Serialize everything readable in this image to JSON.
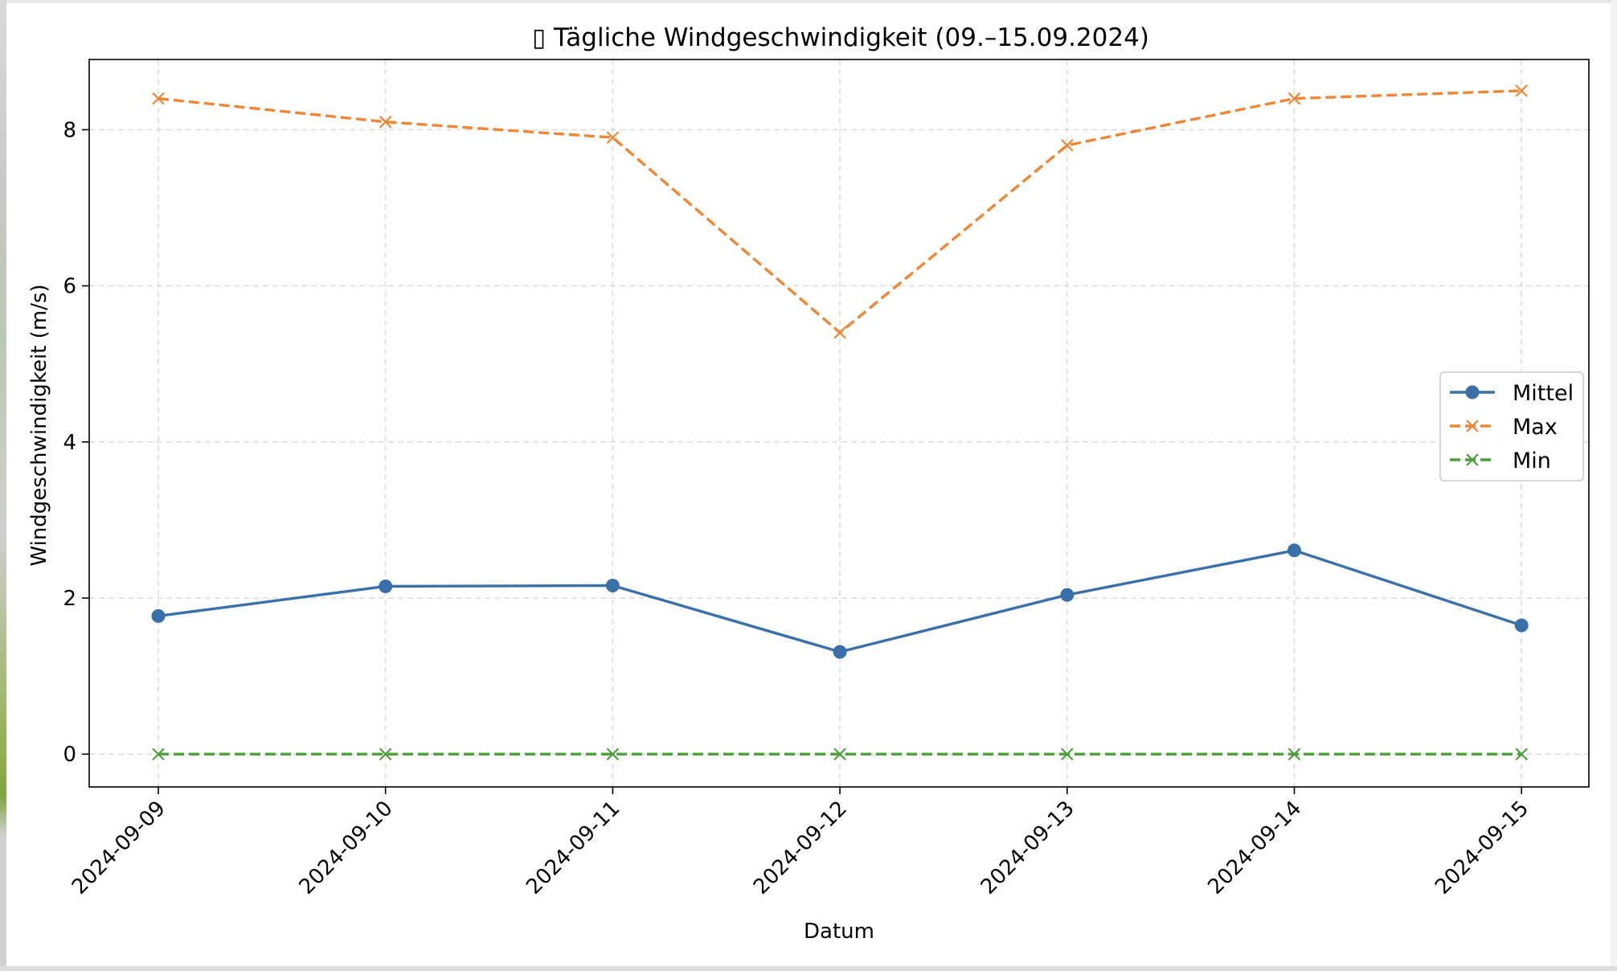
{
  "chart_data": {
    "type": "line",
    "title": "▯ Tägliche Windgeschwindigkeit (09.–15.09.2024)",
    "xlabel": "Datum",
    "ylabel": "Windgeschwindigkeit (m/s)",
    "categories": [
      "2024-09-09",
      "2024-09-10",
      "2024-09-11",
      "2024-09-12",
      "2024-09-13",
      "2024-09-14",
      "2024-09-15"
    ],
    "yticks": [
      0,
      2,
      4,
      6,
      8
    ],
    "ylim": [
      -0.42,
      8.9
    ],
    "grid": true,
    "legend_position": "center-right",
    "series": [
      {
        "name": "Mittel",
        "values": [
          1.77,
          2.15,
          2.16,
          1.31,
          2.04,
          2.61,
          1.65
        ],
        "color": "#3a70aa",
        "style": "solid",
        "marker": "circle"
      },
      {
        "name": "Max",
        "values": [
          8.4,
          8.1,
          7.9,
          5.4,
          7.8,
          8.4,
          8.5
        ],
        "color": "#ef8636",
        "style": "dashed",
        "marker": "x"
      },
      {
        "name": "Min",
        "values": [
          0,
          0,
          0,
          0,
          0,
          0,
          0
        ],
        "color": "#4d9e3b",
        "style": "dashed",
        "marker": "x"
      }
    ]
  }
}
